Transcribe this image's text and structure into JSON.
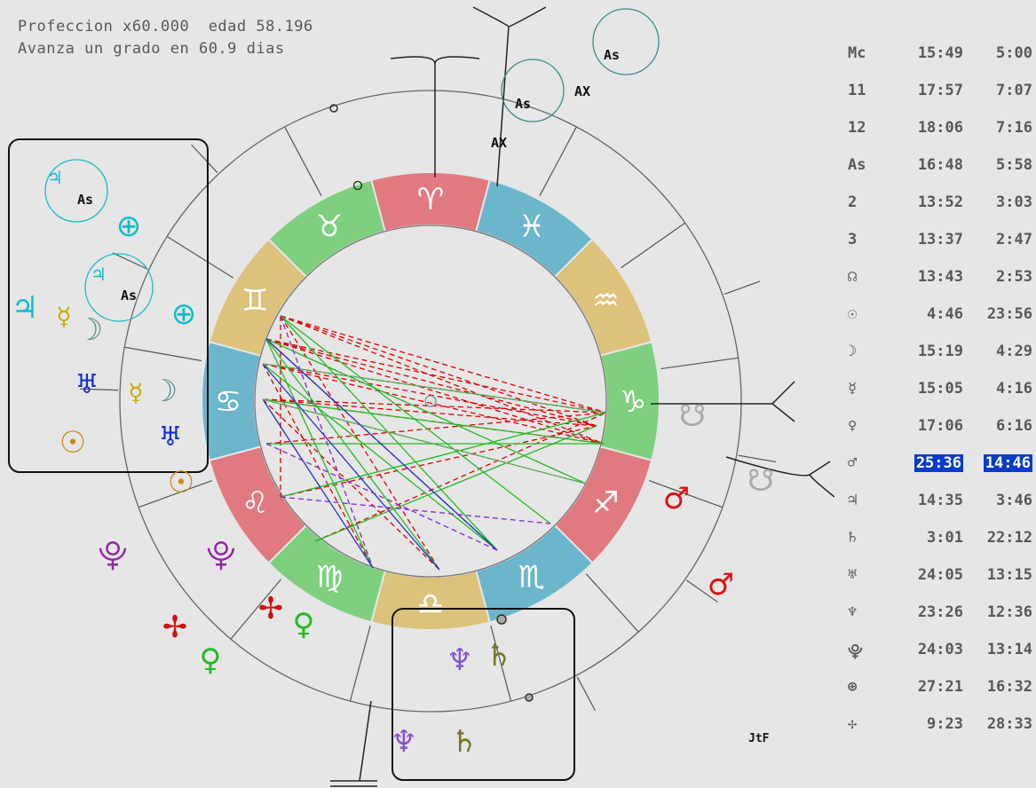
{
  "header": {
    "line1": "Profeccion x60.000  edad 58.196",
    "line2": "Avanza un grado en 60.9 dias"
  },
  "colors": {
    "fire": "#e07a7e",
    "earth": "#7ed07e",
    "air": "#dcc27a",
    "water": "#6cb6cc",
    "red_aspect": "#dd0000",
    "green_aspect": "#22bb22",
    "blue_aspect": "#2233cc",
    "purple_aspect": "#8822cc"
  },
  "signs": [
    {
      "glyph": "♈",
      "name": "aries-sign"
    },
    {
      "glyph": "♓",
      "name": "pisces-sign"
    },
    {
      "glyph": "♒",
      "name": "aquarius-sign"
    },
    {
      "glyph": "♑",
      "name": "capricorn-sign"
    },
    {
      "glyph": "♐",
      "name": "sagittarius-sign"
    },
    {
      "glyph": "♏",
      "name": "scorpio-sign"
    },
    {
      "glyph": "♎",
      "name": "libra-sign"
    },
    {
      "glyph": "♍",
      "name": "virgo-sign"
    },
    {
      "glyph": "♌",
      "name": "leo-sign"
    },
    {
      "glyph": "♋",
      "name": "cancer-sign"
    },
    {
      "glyph": "♊",
      "name": "gemini-sign"
    },
    {
      "glyph": "♉",
      "name": "taurus-sign"
    }
  ],
  "wheel_labels": {
    "as": "As",
    "ax": "AX",
    "signature": "JtF"
  },
  "planet_glyphs": [
    {
      "glyph": "♃",
      "color": "#11bbcc",
      "name": "jupiter-glyph"
    },
    {
      "glyph": "☿",
      "color": "#ccaa00",
      "name": "mercury-glyph"
    },
    {
      "glyph": "☽",
      "color": "#5a8a8a",
      "name": "moon-glyph"
    },
    {
      "glyph": "♅",
      "color": "#1133cc",
      "name": "uranus-glyph"
    },
    {
      "glyph": "☉",
      "color": "#cc8811",
      "name": "sun-glyph"
    },
    {
      "glyph": "⊕",
      "color": "#11bbcc",
      "name": "earth-glyph"
    },
    {
      "glyph": "♂",
      "color": "#dd1111",
      "name": "mars-glyph"
    },
    {
      "glyph": "♀",
      "color": "#22bb22",
      "name": "venus-glyph"
    },
    {
      "glyph": "♆",
      "color": "#8855cc",
      "name": "neptune-glyph"
    },
    {
      "glyph": "♄",
      "color": "#777722",
      "name": "saturn-glyph"
    },
    {
      "glyph": "⯓",
      "color": "#9922aa",
      "name": "pluto-glyph"
    },
    {
      "glyph": "☋",
      "color": "#aaaaaa",
      "name": "node-glyph"
    },
    {
      "glyph": "✢",
      "color": "#cc1111",
      "name": "vertex-glyph"
    }
  ],
  "table": [
    {
      "label": "Mc",
      "a": "15:49",
      "b": "5:00"
    },
    {
      "label": "11",
      "a": "17:57",
      "b": "7:07"
    },
    {
      "label": "12",
      "a": "18:06",
      "b": "7:16"
    },
    {
      "label": "As",
      "a": "16:48",
      "b": "5:58"
    },
    {
      "label": "2",
      "a": "13:52",
      "b": "3:03"
    },
    {
      "label": "3",
      "a": "13:37",
      "b": "2:47"
    },
    {
      "label": "☊",
      "a": "13:43",
      "b": "2:53"
    },
    {
      "label": "☉",
      "a": "4:46",
      "b": "23:56"
    },
    {
      "label": "☽",
      "a": "15:19",
      "b": "4:29"
    },
    {
      "label": "☿",
      "a": "15:05",
      "b": "4:16"
    },
    {
      "label": "♀",
      "a": "17:06",
      "b": "6:16"
    },
    {
      "label": "♂",
      "a": "25:36",
      "b": "14:46",
      "highlight": true
    },
    {
      "label": "♃",
      "a": "14:35",
      "b": "3:46"
    },
    {
      "label": "♄",
      "a": "3:01",
      "b": "22:12"
    },
    {
      "label": "♅",
      "a": "24:05",
      "b": "13:15"
    },
    {
      "label": "♆",
      "a": "23:26",
      "b": "12:36"
    },
    {
      "label": "⯓",
      "a": "24:03",
      "b": "13:14"
    },
    {
      "label": "⊕",
      "a": "27:21",
      "b": "16:32"
    },
    {
      "label": "✢",
      "a": "9:23",
      "b": "28:33"
    }
  ]
}
